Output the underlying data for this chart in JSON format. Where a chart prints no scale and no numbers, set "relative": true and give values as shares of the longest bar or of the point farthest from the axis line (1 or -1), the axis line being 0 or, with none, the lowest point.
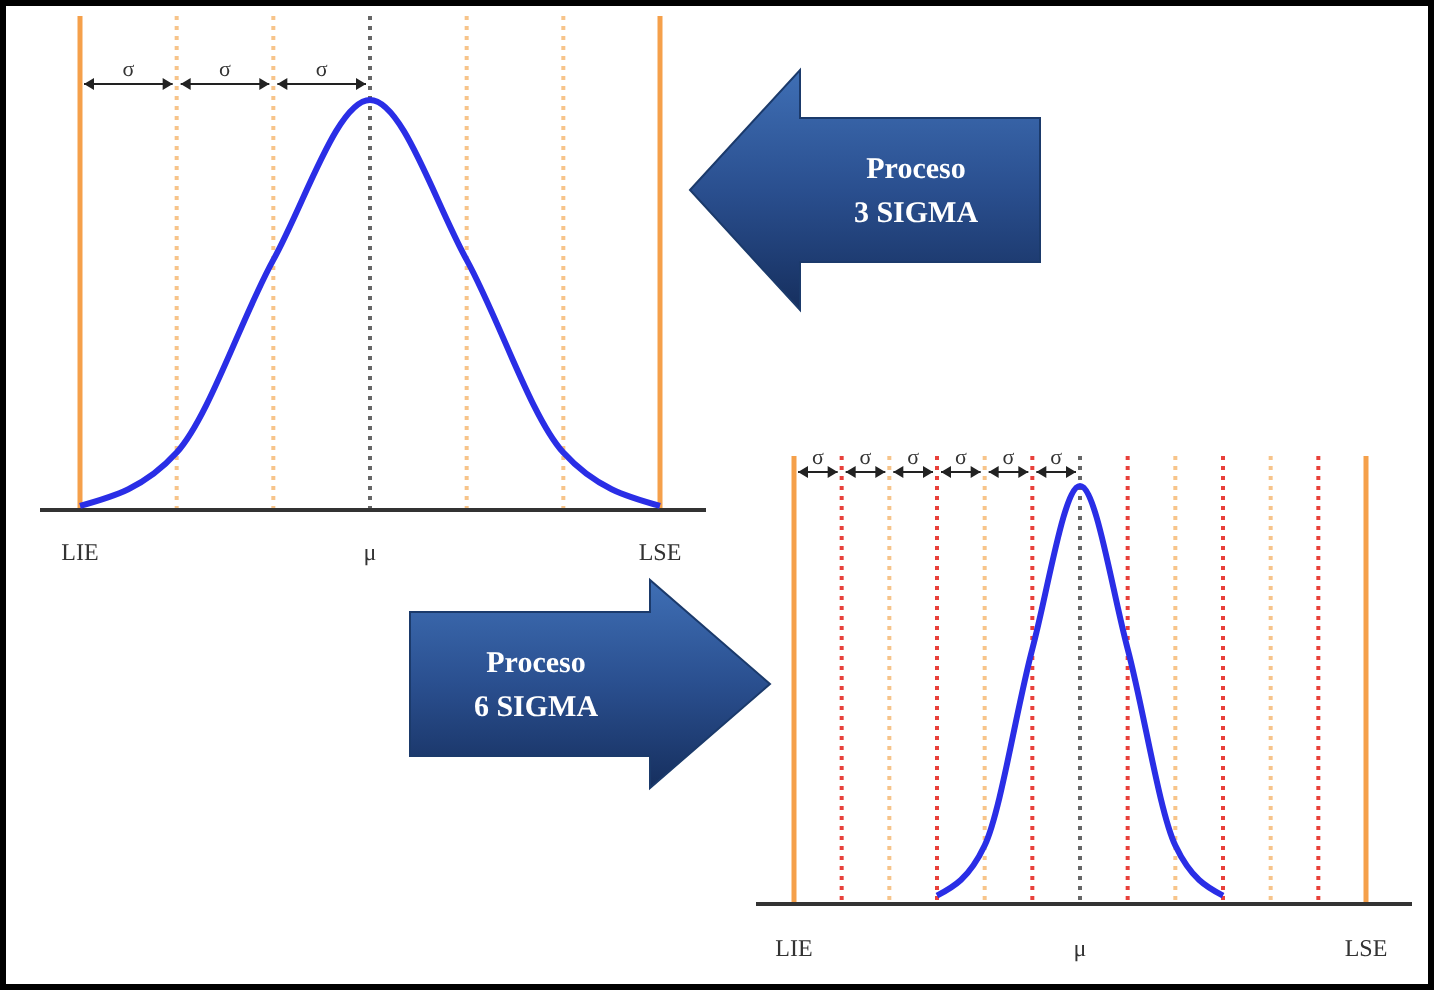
{
  "chart_data": [
    {
      "type": "line",
      "relative": true,
      "marker": "none",
      "line_style": "solid",
      "grid": "x",
      "categories": [
        "LIE",
        null,
        null,
        "μ",
        null,
        null,
        "LSE"
      ],
      "series": [
        {
          "color": "#2a2ee6",
          "values": [
            0.01,
            0.14,
            0.61,
            1,
            0.61,
            0.14,
            0.01
          ]
        }
      ],
      "annotations": [
        "σ",
        "σ",
        "σ",
        "Proceso 3 SIGMA"
      ]
    },
    {
      "type": "line",
      "relative": true,
      "marker": "none",
      "line_style": "solid",
      "grid": "x",
      "categories": [
        "LIE",
        null,
        null,
        null,
        null,
        null,
        "μ",
        null,
        null,
        null,
        null,
        null,
        "LSE"
      ],
      "series": [
        {
          "color": "#2a2ee6",
          "values": [
            null,
            null,
            null,
            0.02,
            0.14,
            0.61,
            1,
            0.61,
            0.14,
            0.02,
            null,
            null,
            null
          ]
        }
      ],
      "annotations": [
        "σ",
        "σ",
        "σ",
        "σ",
        "σ",
        "σ",
        "Proceso 6 SIGMA"
      ]
    }
  ]
}
